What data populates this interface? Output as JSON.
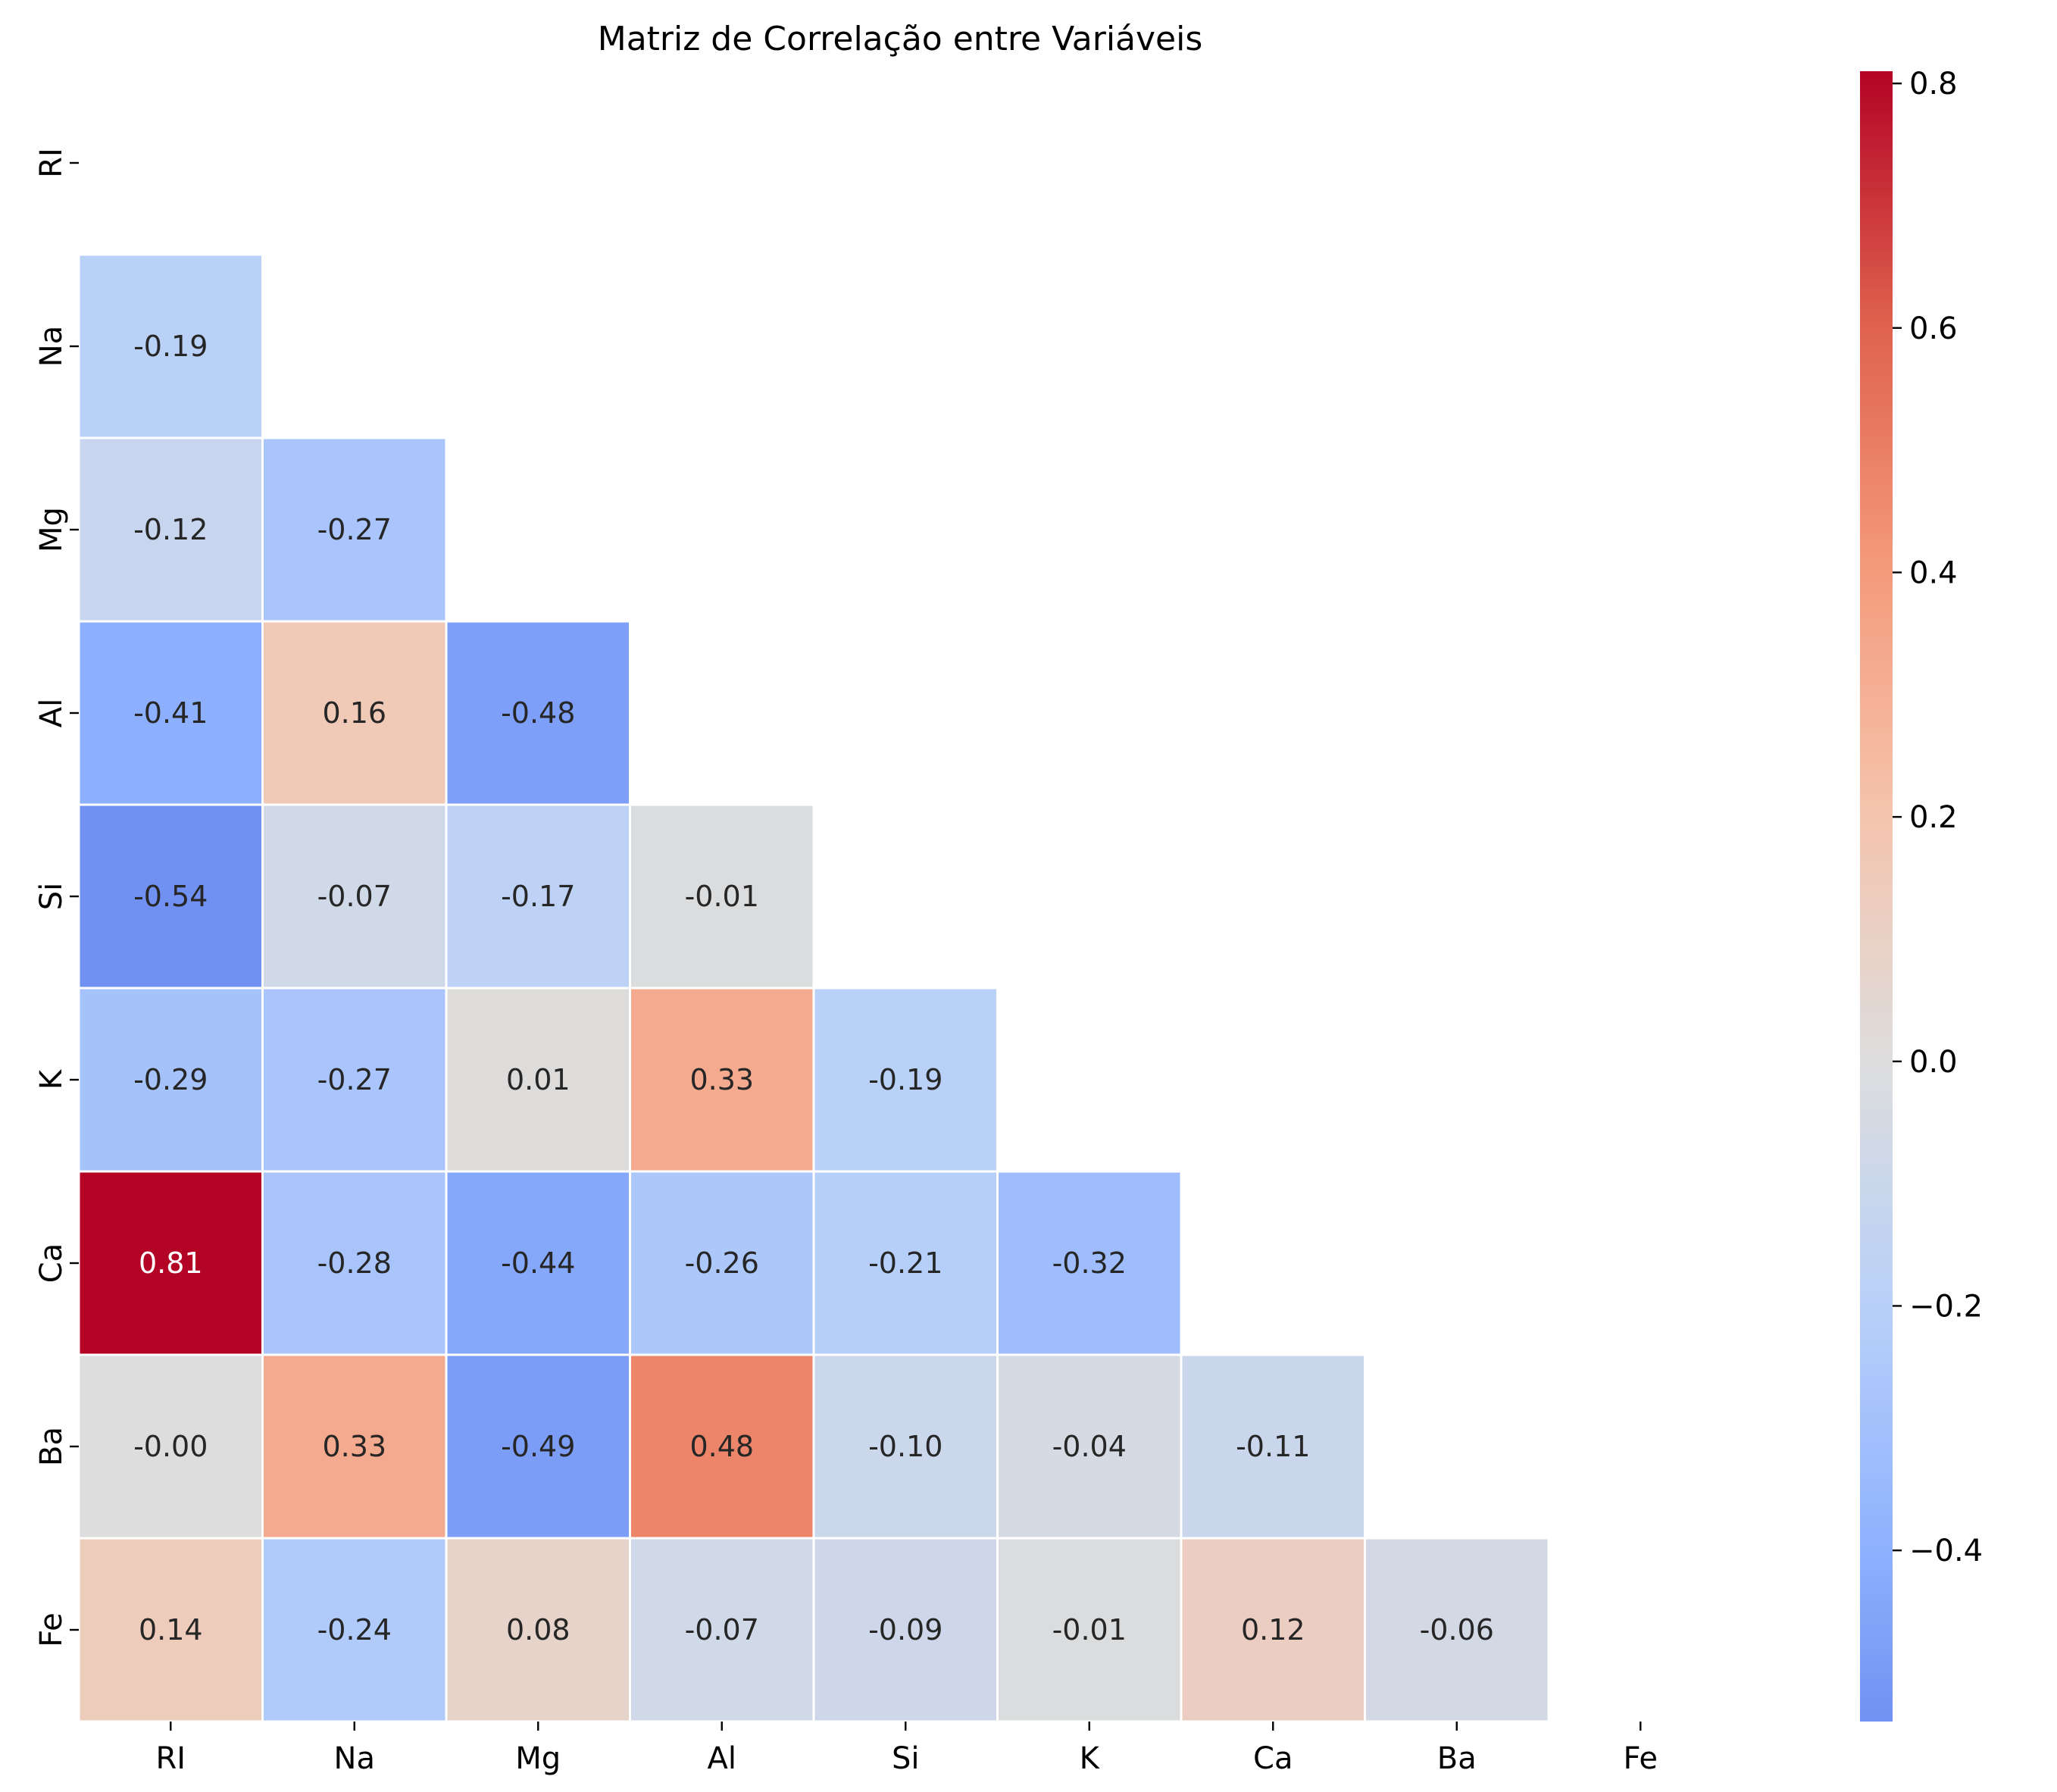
{
  "chart_data": {
    "type": "heatmap",
    "title": "Matriz de Correlação entre Variáveis",
    "variables": [
      "RI",
      "Na",
      "Mg",
      "Al",
      "Si",
      "K",
      "Ca",
      "Ba",
      "Fe"
    ],
    "mask": "upper-triangle-including-diagonal",
    "cells": [
      {
        "row": "Na",
        "col": "RI",
        "value": -0.19,
        "label": "-0.19"
      },
      {
        "row": "Mg",
        "col": "RI",
        "value": -0.12,
        "label": "-0.12"
      },
      {
        "row": "Mg",
        "col": "Na",
        "value": -0.27,
        "label": "-0.27"
      },
      {
        "row": "Al",
        "col": "RI",
        "value": -0.41,
        "label": "-0.41"
      },
      {
        "row": "Al",
        "col": "Na",
        "value": 0.16,
        "label": "0.16"
      },
      {
        "row": "Al",
        "col": "Mg",
        "value": -0.48,
        "label": "-0.48"
      },
      {
        "row": "Si",
        "col": "RI",
        "value": -0.54,
        "label": "-0.54"
      },
      {
        "row": "Si",
        "col": "Na",
        "value": -0.07,
        "label": "-0.07"
      },
      {
        "row": "Si",
        "col": "Mg",
        "value": -0.17,
        "label": "-0.17"
      },
      {
        "row": "Si",
        "col": "Al",
        "value": -0.01,
        "label": "-0.01"
      },
      {
        "row": "K",
        "col": "RI",
        "value": -0.29,
        "label": "-0.29"
      },
      {
        "row": "K",
        "col": "Na",
        "value": -0.27,
        "label": "-0.27"
      },
      {
        "row": "K",
        "col": "Mg",
        "value": 0.01,
        "label": "0.01"
      },
      {
        "row": "K",
        "col": "Al",
        "value": 0.33,
        "label": "0.33"
      },
      {
        "row": "K",
        "col": "Si",
        "value": -0.19,
        "label": "-0.19"
      },
      {
        "row": "Ca",
        "col": "RI",
        "value": 0.81,
        "label": "0.81"
      },
      {
        "row": "Ca",
        "col": "Na",
        "value": -0.28,
        "label": "-0.28"
      },
      {
        "row": "Ca",
        "col": "Mg",
        "value": -0.44,
        "label": "-0.44"
      },
      {
        "row": "Ca",
        "col": "Al",
        "value": -0.26,
        "label": "-0.26"
      },
      {
        "row": "Ca",
        "col": "Si",
        "value": -0.21,
        "label": "-0.21"
      },
      {
        "row": "Ca",
        "col": "K",
        "value": -0.32,
        "label": "-0.32"
      },
      {
        "row": "Ba",
        "col": "RI",
        "value": -0.0,
        "label": "-0.00"
      },
      {
        "row": "Ba",
        "col": "Na",
        "value": 0.33,
        "label": "0.33"
      },
      {
        "row": "Ba",
        "col": "Mg",
        "value": -0.49,
        "label": "-0.49"
      },
      {
        "row": "Ba",
        "col": "Al",
        "value": 0.48,
        "label": "0.48"
      },
      {
        "row": "Ba",
        "col": "Si",
        "value": -0.1,
        "label": "-0.10"
      },
      {
        "row": "Ba",
        "col": "K",
        "value": -0.04,
        "label": "-0.04"
      },
      {
        "row": "Ba",
        "col": "Ca",
        "value": -0.11,
        "label": "-0.11"
      },
      {
        "row": "Fe",
        "col": "RI",
        "value": 0.14,
        "label": "0.14"
      },
      {
        "row": "Fe",
        "col": "Na",
        "value": -0.24,
        "label": "-0.24"
      },
      {
        "row": "Fe",
        "col": "Mg",
        "value": 0.08,
        "label": "0.08"
      },
      {
        "row": "Fe",
        "col": "Al",
        "value": -0.07,
        "label": "-0.07"
      },
      {
        "row": "Fe",
        "col": "Si",
        "value": -0.09,
        "label": "-0.09"
      },
      {
        "row": "Fe",
        "col": "K",
        "value": -0.01,
        "label": "-0.01"
      },
      {
        "row": "Fe",
        "col": "Ca",
        "value": 0.12,
        "label": "0.12"
      },
      {
        "row": "Fe",
        "col": "Ba",
        "value": -0.06,
        "label": "-0.06"
      }
    ],
    "colorbar": {
      "colormap": "coolwarm",
      "center": 0,
      "range": [
        -0.54,
        0.81
      ],
      "ticks": [
        0.8,
        0.6,
        0.4,
        0.2,
        0.0,
        -0.2,
        -0.4
      ],
      "tick_labels": [
        "0.8",
        "0.6",
        "0.4",
        "0.2",
        "0.0",
        "−0.2",
        "−0.4"
      ]
    },
    "grid": false,
    "legend": "colorbar-right"
  }
}
